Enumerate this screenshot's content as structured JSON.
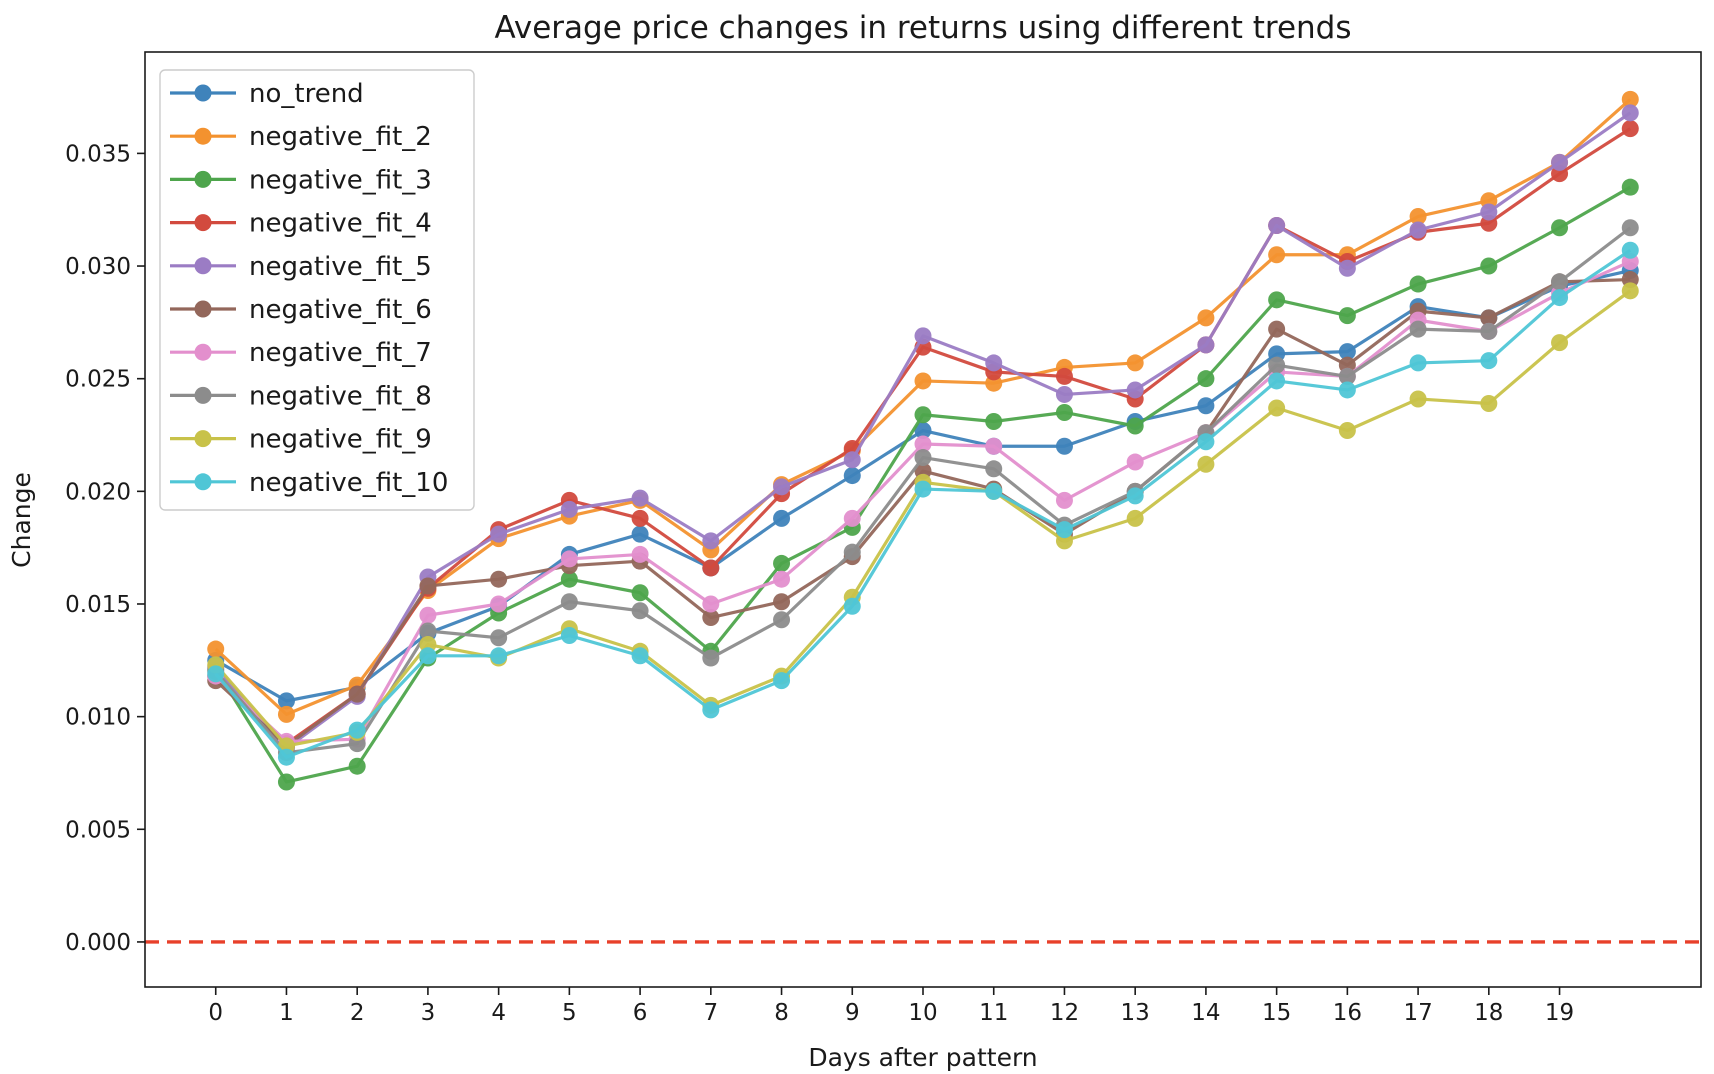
{
  "chart_data": {
    "type": "line",
    "title": "Average price changes in returns using different trends",
    "xlabel": "Days after pattern",
    "ylabel": "Change",
    "x": [
      0,
      1,
      2,
      3,
      4,
      5,
      6,
      7,
      8,
      9,
      10,
      11,
      12,
      13,
      14,
      15,
      16,
      17,
      18,
      19,
      20
    ],
    "xticks": [
      0,
      1,
      2,
      3,
      4,
      5,
      6,
      7,
      8,
      9,
      10,
      11,
      12,
      13,
      14,
      15,
      16,
      17,
      18,
      19
    ],
    "xlim": [
      -1,
      21
    ],
    "ylim": [
      -0.002,
      0.0395
    ],
    "yticks": [
      "0.000",
      "0.005",
      "0.010",
      "0.015",
      "0.020",
      "0.025",
      "0.030",
      "0.035"
    ],
    "grid": false,
    "legend_position": "top-left",
    "reference_line": {
      "y": 0,
      "style": "dashed",
      "color": "#e8402a"
    },
    "series": [
      {
        "name": "no_trend",
        "color": "#3f83bb",
        "values": [
          0.0125,
          0.0107,
          0.0113,
          0.0137,
          0.0149,
          0.0172,
          0.0181,
          0.0166,
          0.0188,
          0.0207,
          0.0227,
          0.022,
          0.022,
          0.0231,
          0.0238,
          0.0261,
          0.0262,
          0.0282,
          0.0277,
          0.0291,
          0.0298
        ]
      },
      {
        "name": "negative_fit_2",
        "color": "#f3922f",
        "values": [
          0.013,
          0.0101,
          0.0114,
          0.0156,
          0.0179,
          0.0189,
          0.0196,
          0.0174,
          0.0203,
          0.0218,
          0.0249,
          0.0248,
          0.0255,
          0.0257,
          0.0277,
          0.0305,
          0.0305,
          0.0322,
          0.0329,
          0.0346,
          0.0374
        ]
      },
      {
        "name": "negative_fit_3",
        "color": "#4ea54c",
        "values": [
          0.0121,
          0.0071,
          0.0078,
          0.0126,
          0.0146,
          0.0161,
          0.0155,
          0.0129,
          0.0168,
          0.0184,
          0.0234,
          0.0231,
          0.0235,
          0.0229,
          0.025,
          0.0285,
          0.0278,
          0.0292,
          0.03,
          0.0317,
          0.0335
        ]
      },
      {
        "name": "negative_fit_4",
        "color": "#d24a3e",
        "values": [
          0.0118,
          0.0088,
          0.011,
          0.0157,
          0.0183,
          0.0196,
          0.0188,
          0.0166,
          0.0199,
          0.0219,
          0.0264,
          0.0253,
          0.0251,
          0.0241,
          0.0265,
          0.0318,
          0.0302,
          0.0315,
          0.0319,
          0.0341,
          0.0361
        ]
      },
      {
        "name": "negative_fit_5",
        "color": "#9b7cc4",
        "values": [
          0.0122,
          0.0086,
          0.0109,
          0.0162,
          0.0181,
          0.0192,
          0.0197,
          0.0178,
          0.0202,
          0.0214,
          0.0269,
          0.0257,
          0.0243,
          0.0245,
          0.0265,
          0.0318,
          0.0299,
          0.0316,
          0.0324,
          0.0346,
          0.0368
        ]
      },
      {
        "name": "negative_fit_6",
        "color": "#93675b",
        "values": [
          0.0116,
          0.0087,
          0.011,
          0.0158,
          0.0161,
          0.0167,
          0.0169,
          0.0144,
          0.0151,
          0.0171,
          0.0209,
          0.0201,
          0.0181,
          0.02,
          0.0226,
          0.0272,
          0.0256,
          0.028,
          0.0277,
          0.0293,
          0.0294
        ]
      },
      {
        "name": "negative_fit_7",
        "color": "#e38fcd",
        "values": [
          0.0118,
          0.0089,
          0.009,
          0.0145,
          0.015,
          0.017,
          0.0172,
          0.015,
          0.0161,
          0.0188,
          0.0221,
          0.022,
          0.0196,
          0.0213,
          0.0226,
          0.0253,
          0.0251,
          0.0276,
          0.0271,
          0.0288,
          0.0302
        ]
      },
      {
        "name": "negative_fit_8",
        "color": "#8c8c8c",
        "values": [
          0.012,
          0.0084,
          0.0088,
          0.0138,
          0.0135,
          0.0151,
          0.0147,
          0.0126,
          0.0143,
          0.0173,
          0.0215,
          0.021,
          0.0185,
          0.02,
          0.0226,
          0.0256,
          0.0251,
          0.0272,
          0.0271,
          0.0293,
          0.0317
        ]
      },
      {
        "name": "negative_fit_9",
        "color": "#c8c249",
        "values": [
          0.0123,
          0.0087,
          0.0093,
          0.0132,
          0.0126,
          0.0139,
          0.0129,
          0.0105,
          0.0118,
          0.0153,
          0.0204,
          0.02,
          0.0178,
          0.0188,
          0.0212,
          0.0237,
          0.0227,
          0.0241,
          0.0239,
          0.0266,
          0.0289
        ]
      },
      {
        "name": "negative_fit_10",
        "color": "#4fc6d6",
        "values": [
          0.0119,
          0.0082,
          0.0094,
          0.0127,
          0.0127,
          0.0136,
          0.0127,
          0.0103,
          0.0116,
          0.0149,
          0.0201,
          0.02,
          0.0183,
          0.0198,
          0.0222,
          0.0249,
          0.0245,
          0.0257,
          0.0258,
          0.0286,
          0.0307
        ]
      }
    ]
  }
}
